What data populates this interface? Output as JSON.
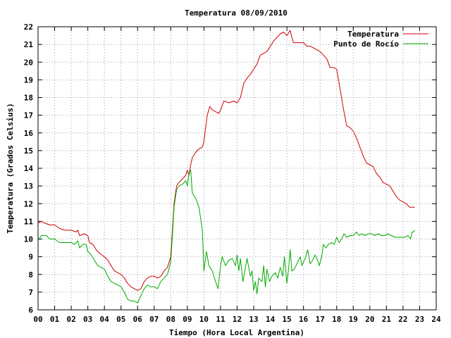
{
  "chart_data": {
    "type": "line",
    "title": "Temperatura 08/09/2010",
    "xlabel": "Tiempo (Hora Local Argentina)",
    "ylabel": "Temperatura (Grados Celsius)",
    "xlim": [
      0,
      24
    ],
    "ylim": [
      6,
      22
    ],
    "grid": true,
    "legend_position": "top-right",
    "x_ticks": [
      0,
      1,
      2,
      3,
      4,
      5,
      6,
      7,
      8,
      9,
      10,
      11,
      12,
      13,
      14,
      15,
      16,
      17,
      18,
      19,
      20,
      21,
      22,
      23,
      24
    ],
    "x_tick_labels": [
      "00",
      "01",
      "02",
      "03",
      "04",
      "05",
      "06",
      "07",
      "08",
      "09",
      "10",
      "11",
      "12",
      "13",
      "14",
      "15",
      "16",
      "17",
      "18",
      "19",
      "20",
      "21",
      "22",
      "23",
      "24"
    ],
    "y_ticks": [
      6,
      7,
      8,
      9,
      10,
      11,
      12,
      13,
      14,
      15,
      16,
      17,
      18,
      19,
      20,
      21,
      22
    ],
    "y_tick_labels": [
      "6",
      "7",
      "8",
      "9",
      "10",
      "11",
      "12",
      "13",
      "14",
      "15",
      "16",
      "17",
      "18",
      "19",
      "20",
      "21",
      "22"
    ],
    "series": [
      {
        "name": "Temperatura",
        "color": "#cc0000",
        "points": [
          [
            0.0,
            10.9
          ],
          [
            0.2,
            11.0
          ],
          [
            0.4,
            10.9
          ],
          [
            0.7,
            10.8
          ],
          [
            1.0,
            10.8
          ],
          [
            1.3,
            10.6
          ],
          [
            1.6,
            10.5
          ],
          [
            2.0,
            10.5
          ],
          [
            2.3,
            10.4
          ],
          [
            2.4,
            10.5
          ],
          [
            2.5,
            10.2
          ],
          [
            2.8,
            10.3
          ],
          [
            3.0,
            10.2
          ],
          [
            3.1,
            9.8
          ],
          [
            3.3,
            9.7
          ],
          [
            3.5,
            9.4
          ],
          [
            3.7,
            9.2
          ],
          [
            4.0,
            9.0
          ],
          [
            4.2,
            8.8
          ],
          [
            4.4,
            8.5
          ],
          [
            4.6,
            8.2
          ],
          [
            4.8,
            8.1
          ],
          [
            5.0,
            8.0
          ],
          [
            5.2,
            7.8
          ],
          [
            5.4,
            7.5
          ],
          [
            5.6,
            7.3
          ],
          [
            5.8,
            7.2
          ],
          [
            6.0,
            7.1
          ],
          [
            6.2,
            7.2
          ],
          [
            6.4,
            7.6
          ],
          [
            6.6,
            7.8
          ],
          [
            6.8,
            7.9
          ],
          [
            7.0,
            7.9
          ],
          [
            7.2,
            7.8
          ],
          [
            7.4,
            7.9
          ],
          [
            7.6,
            8.2
          ],
          [
            7.8,
            8.4
          ],
          [
            8.0,
            9.0
          ],
          [
            8.1,
            10.5
          ],
          [
            8.2,
            12.0
          ],
          [
            8.35,
            13.0
          ],
          [
            8.5,
            13.2
          ],
          [
            8.7,
            13.4
          ],
          [
            8.9,
            13.6
          ],
          [
            9.0,
            13.9
          ],
          [
            9.1,
            13.6
          ],
          [
            9.2,
            14.2
          ],
          [
            9.3,
            14.6
          ],
          [
            9.5,
            14.9
          ],
          [
            9.7,
            15.1
          ],
          [
            9.9,
            15.2
          ],
          [
            10.0,
            15.5
          ],
          [
            10.1,
            16.3
          ],
          [
            10.2,
            17.0
          ],
          [
            10.35,
            17.5
          ],
          [
            10.5,
            17.3
          ],
          [
            10.7,
            17.2
          ],
          [
            10.9,
            17.1
          ],
          [
            11.0,
            17.3
          ],
          [
            11.2,
            17.8
          ],
          [
            11.5,
            17.7
          ],
          [
            11.8,
            17.8
          ],
          [
            12.0,
            17.7
          ],
          [
            12.2,
            18.0
          ],
          [
            12.4,
            18.8
          ],
          [
            12.6,
            19.1
          ],
          [
            12.8,
            19.3
          ],
          [
            13.0,
            19.6
          ],
          [
            13.2,
            19.9
          ],
          [
            13.4,
            20.4
          ],
          [
            13.6,
            20.5
          ],
          [
            13.8,
            20.6
          ],
          [
            14.0,
            20.9
          ],
          [
            14.2,
            21.2
          ],
          [
            14.4,
            21.4
          ],
          [
            14.6,
            21.6
          ],
          [
            14.8,
            21.7
          ],
          [
            15.0,
            21.5
          ],
          [
            15.2,
            21.8
          ],
          [
            15.3,
            21.4
          ],
          [
            15.4,
            21.1
          ],
          [
            15.6,
            21.1
          ],
          [
            15.8,
            21.1
          ],
          [
            16.0,
            21.1
          ],
          [
            16.2,
            20.9
          ],
          [
            16.4,
            20.9
          ],
          [
            16.6,
            20.8
          ],
          [
            16.8,
            20.7
          ],
          [
            17.0,
            20.6
          ],
          [
            17.2,
            20.4
          ],
          [
            17.4,
            20.2
          ],
          [
            17.6,
            19.7
          ],
          [
            17.8,
            19.7
          ],
          [
            18.0,
            19.6
          ],
          [
            18.2,
            18.5
          ],
          [
            18.4,
            17.4
          ],
          [
            18.6,
            16.4
          ],
          [
            18.8,
            16.3
          ],
          [
            19.0,
            16.1
          ],
          [
            19.2,
            15.7
          ],
          [
            19.4,
            15.2
          ],
          [
            19.6,
            14.7
          ],
          [
            19.8,
            14.3
          ],
          [
            20.0,
            14.2
          ],
          [
            20.2,
            14.1
          ],
          [
            20.4,
            13.7
          ],
          [
            20.6,
            13.5
          ],
          [
            20.8,
            13.2
          ],
          [
            21.0,
            13.1
          ],
          [
            21.2,
            13.0
          ],
          [
            21.4,
            12.7
          ],
          [
            21.6,
            12.4
          ],
          [
            21.8,
            12.2
          ],
          [
            22.0,
            12.1
          ],
          [
            22.2,
            12.0
          ],
          [
            22.4,
            11.8
          ],
          [
            22.6,
            11.8
          ],
          [
            22.7,
            11.8
          ]
        ]
      },
      {
        "name": "Punto de Rocío",
        "color": "#00aa00",
        "points": [
          [
            0.0,
            9.9
          ],
          [
            0.2,
            10.2
          ],
          [
            0.5,
            10.2
          ],
          [
            0.7,
            10.0
          ],
          [
            1.0,
            10.0
          ],
          [
            1.3,
            9.8
          ],
          [
            1.6,
            9.8
          ],
          [
            2.0,
            9.8
          ],
          [
            2.2,
            9.7
          ],
          [
            2.4,
            9.9
          ],
          [
            2.5,
            9.5
          ],
          [
            2.7,
            9.7
          ],
          [
            2.9,
            9.7
          ],
          [
            3.0,
            9.3
          ],
          [
            3.2,
            9.1
          ],
          [
            3.4,
            8.8
          ],
          [
            3.6,
            8.5
          ],
          [
            3.8,
            8.4
          ],
          [
            4.0,
            8.3
          ],
          [
            4.2,
            7.9
          ],
          [
            4.4,
            7.6
          ],
          [
            4.6,
            7.5
          ],
          [
            4.8,
            7.4
          ],
          [
            5.0,
            7.3
          ],
          [
            5.2,
            7.0
          ],
          [
            5.4,
            6.6
          ],
          [
            5.6,
            6.5
          ],
          [
            5.8,
            6.5
          ],
          [
            6.0,
            6.4
          ],
          [
            6.2,
            6.8
          ],
          [
            6.4,
            7.2
          ],
          [
            6.6,
            7.4
          ],
          [
            6.8,
            7.3
          ],
          [
            7.0,
            7.3
          ],
          [
            7.2,
            7.2
          ],
          [
            7.4,
            7.6
          ],
          [
            7.6,
            7.8
          ],
          [
            7.8,
            8.0
          ],
          [
            8.0,
            8.7
          ],
          [
            8.1,
            10.2
          ],
          [
            8.2,
            11.8
          ],
          [
            8.35,
            12.8
          ],
          [
            8.5,
            13.0
          ],
          [
            8.7,
            13.1
          ],
          [
            8.9,
            13.3
          ],
          [
            9.0,
            13.0
          ],
          [
            9.1,
            13.7
          ],
          [
            9.2,
            13.9
          ],
          [
            9.3,
            12.6
          ],
          [
            9.5,
            12.3
          ],
          [
            9.7,
            11.8
          ],
          [
            9.9,
            10.5
          ],
          [
            10.0,
            8.2
          ],
          [
            10.15,
            9.3
          ],
          [
            10.3,
            8.5
          ],
          [
            10.5,
            8.2
          ],
          [
            10.7,
            7.6
          ],
          [
            10.85,
            7.2
          ],
          [
            11.0,
            8.5
          ],
          [
            11.1,
            9.0
          ],
          [
            11.3,
            8.5
          ],
          [
            11.5,
            8.8
          ],
          [
            11.7,
            8.9
          ],
          [
            11.9,
            8.5
          ],
          [
            12.0,
            9.1
          ],
          [
            12.1,
            8.2
          ],
          [
            12.2,
            8.9
          ],
          [
            12.35,
            7.6
          ],
          [
            12.5,
            8.4
          ],
          [
            12.6,
            8.9
          ],
          [
            12.8,
            7.9
          ],
          [
            12.9,
            8.2
          ],
          [
            13.0,
            7.1
          ],
          [
            13.1,
            7.6
          ],
          [
            13.2,
            6.9
          ],
          [
            13.3,
            7.8
          ],
          [
            13.5,
            7.6
          ],
          [
            13.6,
            8.5
          ],
          [
            13.7,
            7.3
          ],
          [
            13.8,
            8.3
          ],
          [
            13.95,
            7.6
          ],
          [
            14.1,
            7.9
          ],
          [
            14.3,
            8.1
          ],
          [
            14.45,
            7.8
          ],
          [
            14.6,
            8.4
          ],
          [
            14.75,
            7.9
          ],
          [
            14.85,
            9.0
          ],
          [
            15.0,
            7.5
          ],
          [
            15.1,
            8.3
          ],
          [
            15.2,
            9.4
          ],
          [
            15.3,
            8.2
          ],
          [
            15.45,
            8.3
          ],
          [
            15.6,
            8.6
          ],
          [
            15.8,
            9.0
          ],
          [
            15.9,
            8.5
          ],
          [
            16.1,
            8.9
          ],
          [
            16.25,
            9.4
          ],
          [
            16.4,
            8.6
          ],
          [
            16.55,
            8.8
          ],
          [
            16.7,
            9.1
          ],
          [
            16.85,
            8.8
          ],
          [
            16.95,
            8.5
          ],
          [
            17.1,
            9.0
          ],
          [
            17.2,
            9.7
          ],
          [
            17.35,
            9.5
          ],
          [
            17.5,
            9.7
          ],
          [
            17.7,
            9.8
          ],
          [
            17.85,
            9.7
          ],
          [
            18.0,
            10.1
          ],
          [
            18.15,
            9.8
          ],
          [
            18.3,
            10.0
          ],
          [
            18.45,
            10.3
          ],
          [
            18.6,
            10.1
          ],
          [
            18.8,
            10.2
          ],
          [
            19.0,
            10.2
          ],
          [
            19.2,
            10.4
          ],
          [
            19.35,
            10.2
          ],
          [
            19.5,
            10.3
          ],
          [
            19.7,
            10.2
          ],
          [
            19.9,
            10.3
          ],
          [
            20.1,
            10.3
          ],
          [
            20.3,
            10.2
          ],
          [
            20.5,
            10.3
          ],
          [
            20.7,
            10.2
          ],
          [
            20.9,
            10.2
          ],
          [
            21.1,
            10.3
          ],
          [
            21.3,
            10.2
          ],
          [
            21.5,
            10.1
          ],
          [
            21.7,
            10.1
          ],
          [
            21.9,
            10.1
          ],
          [
            22.1,
            10.1
          ],
          [
            22.3,
            10.2
          ],
          [
            22.45,
            10.0
          ],
          [
            22.55,
            10.4
          ],
          [
            22.65,
            10.4
          ],
          [
            22.7,
            10.5
          ]
        ]
      }
    ]
  }
}
